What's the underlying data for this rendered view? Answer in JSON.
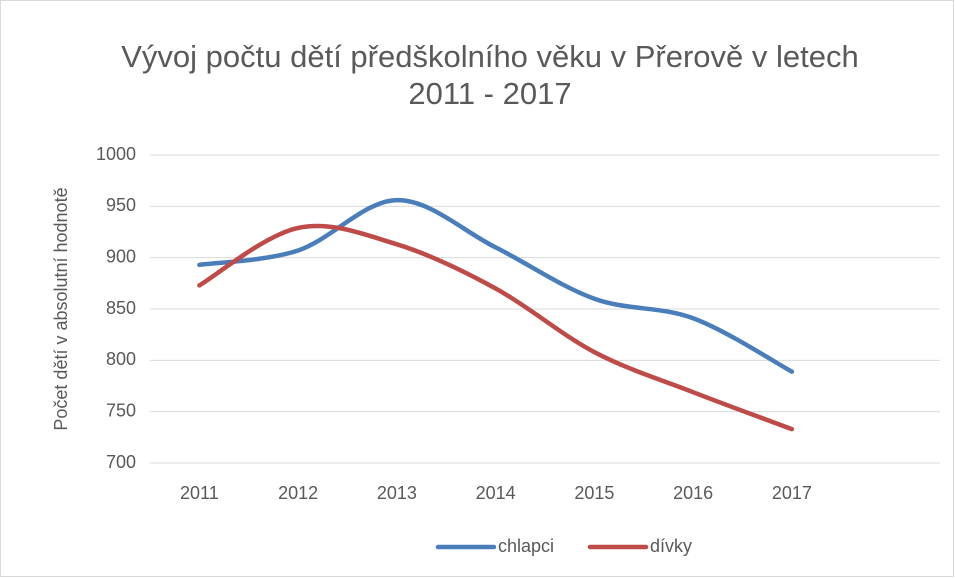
{
  "chart_data": {
    "type": "line",
    "title": "Vývoj počtu dětí předškolního věku v Přerově v letech 2011 - 2017",
    "y_label": "Počet dětí v absolutní hodnotě",
    "categories": [
      "2011",
      "2012",
      "2013",
      "2014",
      "2015",
      "2016",
      "2017",
      null
    ],
    "series": [
      {
        "name": "chlapci",
        "color": "#4a7ebb",
        "values": [
          893,
          907,
          956,
          910,
          860,
          841,
          789,
          null
        ]
      },
      {
        "name": "dívky",
        "color": "#be4b48",
        "values": [
          873,
          929,
          913,
          870,
          808,
          769,
          733,
          null
        ]
      }
    ],
    "ylim": [
      700,
      1000
    ],
    "yticks": [
      700,
      750,
      800,
      850,
      900,
      950,
      1000
    ],
    "grid": true,
    "smooth": true,
    "legend": "bottom"
  }
}
